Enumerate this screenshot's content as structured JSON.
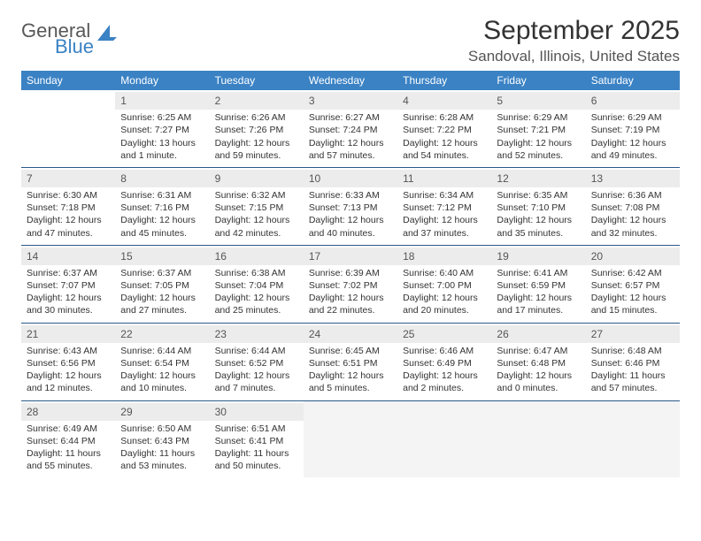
{
  "logo": {
    "general": "General",
    "blue": "Blue"
  },
  "title": "September 2025",
  "location": "Sandoval, Illinois, United States",
  "colors": {
    "header_bg": "#3b82c4",
    "header_text": "#ffffff",
    "rule": "#2a5a8a",
    "daynum_bg": "#ececec",
    "body_text": "#333333",
    "logo_gray": "#585858",
    "logo_blue": "#3b82c4",
    "page_bg": "#ffffff"
  },
  "typography": {
    "title_fontsize": 30,
    "location_fontsize": 17,
    "weekday_fontsize": 12,
    "daynum_fontsize": 12,
    "cell_fontsize": 10.5
  },
  "weekdays": [
    "Sunday",
    "Monday",
    "Tuesday",
    "Wednesday",
    "Thursday",
    "Friday",
    "Saturday"
  ],
  "weeks": [
    [
      {
        "empty": true
      },
      {
        "day": "1",
        "sunrise": "Sunrise: 6:25 AM",
        "sunset": "Sunset: 7:27 PM",
        "daylight1": "Daylight: 13 hours",
        "daylight2": "and 1 minute."
      },
      {
        "day": "2",
        "sunrise": "Sunrise: 6:26 AM",
        "sunset": "Sunset: 7:26 PM",
        "daylight1": "Daylight: 12 hours",
        "daylight2": "and 59 minutes."
      },
      {
        "day": "3",
        "sunrise": "Sunrise: 6:27 AM",
        "sunset": "Sunset: 7:24 PM",
        "daylight1": "Daylight: 12 hours",
        "daylight2": "and 57 minutes."
      },
      {
        "day": "4",
        "sunrise": "Sunrise: 6:28 AM",
        "sunset": "Sunset: 7:22 PM",
        "daylight1": "Daylight: 12 hours",
        "daylight2": "and 54 minutes."
      },
      {
        "day": "5",
        "sunrise": "Sunrise: 6:29 AM",
        "sunset": "Sunset: 7:21 PM",
        "daylight1": "Daylight: 12 hours",
        "daylight2": "and 52 minutes."
      },
      {
        "day": "6",
        "sunrise": "Sunrise: 6:29 AM",
        "sunset": "Sunset: 7:19 PM",
        "daylight1": "Daylight: 12 hours",
        "daylight2": "and 49 minutes."
      }
    ],
    [
      {
        "day": "7",
        "sunrise": "Sunrise: 6:30 AM",
        "sunset": "Sunset: 7:18 PM",
        "daylight1": "Daylight: 12 hours",
        "daylight2": "and 47 minutes."
      },
      {
        "day": "8",
        "sunrise": "Sunrise: 6:31 AM",
        "sunset": "Sunset: 7:16 PM",
        "daylight1": "Daylight: 12 hours",
        "daylight2": "and 45 minutes."
      },
      {
        "day": "9",
        "sunrise": "Sunrise: 6:32 AM",
        "sunset": "Sunset: 7:15 PM",
        "daylight1": "Daylight: 12 hours",
        "daylight2": "and 42 minutes."
      },
      {
        "day": "10",
        "sunrise": "Sunrise: 6:33 AM",
        "sunset": "Sunset: 7:13 PM",
        "daylight1": "Daylight: 12 hours",
        "daylight2": "and 40 minutes."
      },
      {
        "day": "11",
        "sunrise": "Sunrise: 6:34 AM",
        "sunset": "Sunset: 7:12 PM",
        "daylight1": "Daylight: 12 hours",
        "daylight2": "and 37 minutes."
      },
      {
        "day": "12",
        "sunrise": "Sunrise: 6:35 AM",
        "sunset": "Sunset: 7:10 PM",
        "daylight1": "Daylight: 12 hours",
        "daylight2": "and 35 minutes."
      },
      {
        "day": "13",
        "sunrise": "Sunrise: 6:36 AM",
        "sunset": "Sunset: 7:08 PM",
        "daylight1": "Daylight: 12 hours",
        "daylight2": "and 32 minutes."
      }
    ],
    [
      {
        "day": "14",
        "sunrise": "Sunrise: 6:37 AM",
        "sunset": "Sunset: 7:07 PM",
        "daylight1": "Daylight: 12 hours",
        "daylight2": "and 30 minutes."
      },
      {
        "day": "15",
        "sunrise": "Sunrise: 6:37 AM",
        "sunset": "Sunset: 7:05 PM",
        "daylight1": "Daylight: 12 hours",
        "daylight2": "and 27 minutes."
      },
      {
        "day": "16",
        "sunrise": "Sunrise: 6:38 AM",
        "sunset": "Sunset: 7:04 PM",
        "daylight1": "Daylight: 12 hours",
        "daylight2": "and 25 minutes."
      },
      {
        "day": "17",
        "sunrise": "Sunrise: 6:39 AM",
        "sunset": "Sunset: 7:02 PM",
        "daylight1": "Daylight: 12 hours",
        "daylight2": "and 22 minutes."
      },
      {
        "day": "18",
        "sunrise": "Sunrise: 6:40 AM",
        "sunset": "Sunset: 7:00 PM",
        "daylight1": "Daylight: 12 hours",
        "daylight2": "and 20 minutes."
      },
      {
        "day": "19",
        "sunrise": "Sunrise: 6:41 AM",
        "sunset": "Sunset: 6:59 PM",
        "daylight1": "Daylight: 12 hours",
        "daylight2": "and 17 minutes."
      },
      {
        "day": "20",
        "sunrise": "Sunrise: 6:42 AM",
        "sunset": "Sunset: 6:57 PM",
        "daylight1": "Daylight: 12 hours",
        "daylight2": "and 15 minutes."
      }
    ],
    [
      {
        "day": "21",
        "sunrise": "Sunrise: 6:43 AM",
        "sunset": "Sunset: 6:56 PM",
        "daylight1": "Daylight: 12 hours",
        "daylight2": "and 12 minutes."
      },
      {
        "day": "22",
        "sunrise": "Sunrise: 6:44 AM",
        "sunset": "Sunset: 6:54 PM",
        "daylight1": "Daylight: 12 hours",
        "daylight2": "and 10 minutes."
      },
      {
        "day": "23",
        "sunrise": "Sunrise: 6:44 AM",
        "sunset": "Sunset: 6:52 PM",
        "daylight1": "Daylight: 12 hours",
        "daylight2": "and 7 minutes."
      },
      {
        "day": "24",
        "sunrise": "Sunrise: 6:45 AM",
        "sunset": "Sunset: 6:51 PM",
        "daylight1": "Daylight: 12 hours",
        "daylight2": "and 5 minutes."
      },
      {
        "day": "25",
        "sunrise": "Sunrise: 6:46 AM",
        "sunset": "Sunset: 6:49 PM",
        "daylight1": "Daylight: 12 hours",
        "daylight2": "and 2 minutes."
      },
      {
        "day": "26",
        "sunrise": "Sunrise: 6:47 AM",
        "sunset": "Sunset: 6:48 PM",
        "daylight1": "Daylight: 12 hours",
        "daylight2": "and 0 minutes."
      },
      {
        "day": "27",
        "sunrise": "Sunrise: 6:48 AM",
        "sunset": "Sunset: 6:46 PM",
        "daylight1": "Daylight: 11 hours",
        "daylight2": "and 57 minutes."
      }
    ],
    [
      {
        "day": "28",
        "sunrise": "Sunrise: 6:49 AM",
        "sunset": "Sunset: 6:44 PM",
        "daylight1": "Daylight: 11 hours",
        "daylight2": "and 55 minutes."
      },
      {
        "day": "29",
        "sunrise": "Sunrise: 6:50 AM",
        "sunset": "Sunset: 6:43 PM",
        "daylight1": "Daylight: 11 hours",
        "daylight2": "and 53 minutes."
      },
      {
        "day": "30",
        "sunrise": "Sunrise: 6:51 AM",
        "sunset": "Sunset: 6:41 PM",
        "daylight1": "Daylight: 11 hours",
        "daylight2": "and 50 minutes."
      },
      {
        "tail": true
      },
      {
        "tail": true
      },
      {
        "tail": true
      },
      {
        "tail": true
      }
    ]
  ]
}
